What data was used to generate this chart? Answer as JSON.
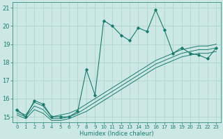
{
  "title": "",
  "xlabel": "Humidex (Indice chaleur)",
  "bg_color": "#cce8e4",
  "grid_color": "#aacfca",
  "line_color": "#1a7a6e",
  "xlim": [
    -0.5,
    23.5
  ],
  "ylim": [
    14.7,
    21.3
  ],
  "yticks": [
    15,
    16,
    17,
    18,
    19,
    20,
    21
  ],
  "xticks": [
    0,
    1,
    2,
    3,
    4,
    5,
    6,
    7,
    8,
    9,
    10,
    11,
    12,
    13,
    14,
    15,
    16,
    17,
    18,
    19,
    20,
    21,
    22,
    23
  ],
  "series": [
    {
      "x": [
        0,
        1,
        2,
        3,
        4,
        5,
        6,
        7,
        8,
        9,
        10,
        11,
        12,
        13,
        14,
        15,
        16,
        17,
        18,
        19,
        20,
        21,
        22,
        23
      ],
      "y": [
        15.4,
        15.0,
        15.9,
        15.7,
        15.0,
        15.0,
        15.0,
        15.3,
        17.6,
        16.2,
        20.3,
        20.0,
        19.5,
        19.2,
        19.9,
        19.7,
        20.9,
        19.8,
        18.5,
        18.8,
        18.5,
        18.4,
        18.2,
        18.8
      ],
      "marker": true
    },
    {
      "x": [
        0,
        1,
        2,
        3,
        4,
        5,
        6,
        7,
        8,
        9,
        10,
        11,
        12,
        13,
        14,
        15,
        16,
        17,
        18,
        19,
        20,
        21,
        22,
        23
      ],
      "y": [
        15.3,
        15.1,
        15.8,
        15.6,
        15.0,
        15.1,
        15.2,
        15.4,
        15.7,
        16.0,
        16.3,
        16.6,
        16.9,
        17.2,
        17.5,
        17.8,
        18.1,
        18.3,
        18.5,
        18.7,
        18.8,
        18.9,
        18.9,
        19.0
      ],
      "marker": false
    },
    {
      "x": [
        0,
        1,
        2,
        3,
        4,
        5,
        6,
        7,
        8,
        9,
        10,
        11,
        12,
        13,
        14,
        15,
        16,
        17,
        18,
        19,
        20,
        21,
        22,
        23
      ],
      "y": [
        15.2,
        15.0,
        15.6,
        15.4,
        14.9,
        14.9,
        15.0,
        15.2,
        15.5,
        15.8,
        16.1,
        16.4,
        16.7,
        17.0,
        17.3,
        17.6,
        17.9,
        18.1,
        18.3,
        18.5,
        18.6,
        18.7,
        18.7,
        18.8
      ],
      "marker": false
    },
    {
      "x": [
        0,
        1,
        2,
        3,
        4,
        5,
        6,
        7,
        8,
        9,
        10,
        11,
        12,
        13,
        14,
        15,
        16,
        17,
        18,
        19,
        20,
        21,
        22,
        23
      ],
      "y": [
        15.1,
        14.9,
        15.4,
        15.2,
        14.8,
        14.8,
        14.9,
        15.1,
        15.3,
        15.6,
        15.9,
        16.2,
        16.5,
        16.8,
        17.1,
        17.4,
        17.7,
        17.9,
        18.1,
        18.3,
        18.4,
        18.5,
        18.5,
        18.6
      ],
      "marker": false
    }
  ]
}
